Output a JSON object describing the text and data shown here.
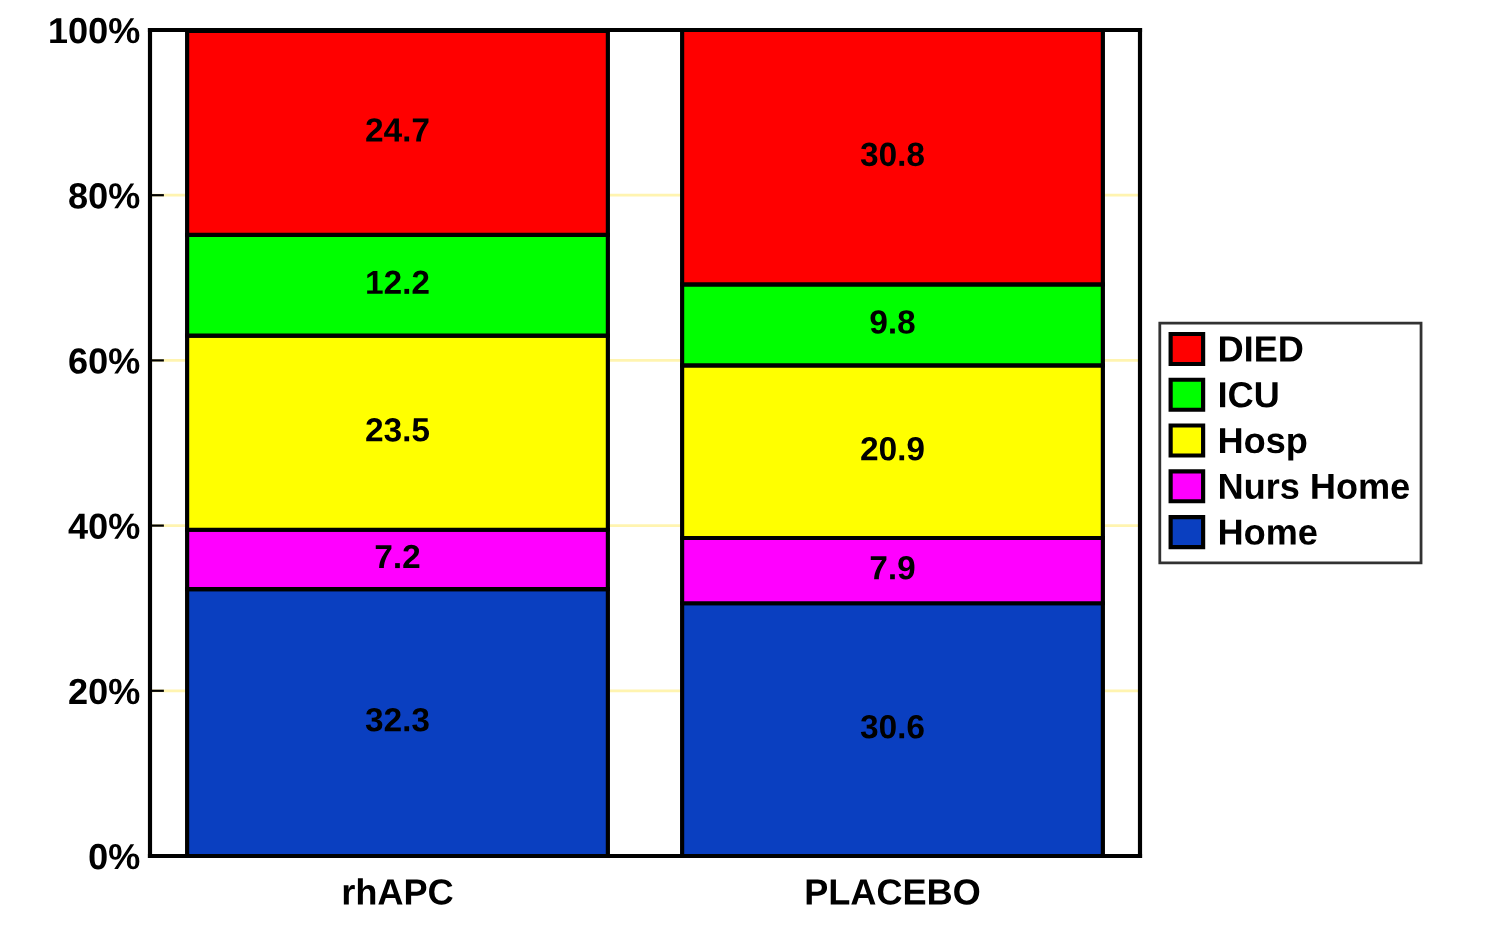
{
  "chart_data": {
    "type": "bar",
    "stacked": true,
    "categories": [
      "rhAPC",
      "PLACEBO"
    ],
    "series": [
      {
        "name": "Home",
        "color": "#0a3fc0",
        "values": [
          32.3,
          30.6
        ]
      },
      {
        "name": "Nurs Home",
        "color": "#ff00ff",
        "values": [
          7.2,
          7.9
        ]
      },
      {
        "name": "Hosp",
        "color": "#ffff00",
        "values": [
          23.5,
          20.9
        ]
      },
      {
        "name": "ICU",
        "color": "#00ff00",
        "values": [
          12.2,
          9.8
        ]
      },
      {
        "name": "DIED",
        "color": "#ff0000",
        "values": [
          24.7,
          30.8
        ]
      }
    ],
    "ylim": [
      0,
      100
    ],
    "yticks": [
      {
        "value": 0,
        "label": "0%"
      },
      {
        "value": 20,
        "label": "20%"
      },
      {
        "value": 40,
        "label": "40%"
      },
      {
        "value": 60,
        "label": "60%"
      },
      {
        "value": 80,
        "label": "80%"
      },
      {
        "value": 100,
        "label": "100%"
      }
    ],
    "data_labels": true,
    "grid": "y",
    "legend": "right"
  }
}
